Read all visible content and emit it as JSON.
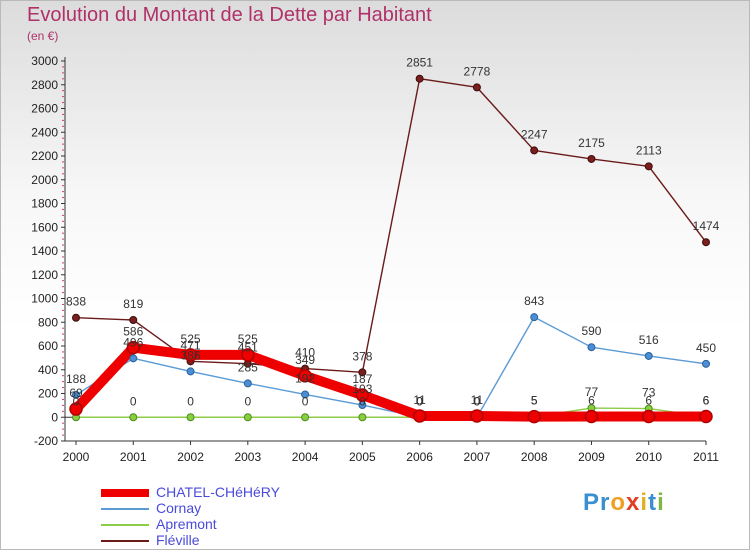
{
  "header": {
    "title": "Evolution du Montant de la Dette par Habitant",
    "subtitle": "(en €)"
  },
  "colors": {
    "CHATEL-CHéHéRY": "#ee0000",
    "Cornay": "#5b9bd5",
    "Apremont": "#8ccc46",
    "Fléville": "#6b1a1a"
  },
  "chart_data": {
    "type": "line",
    "title": "Evolution du Montant de la Dette par Habitant",
    "subtitle": "(en €)",
    "xlabel": "",
    "ylabel": "",
    "categories": [
      "2000",
      "2001",
      "2002",
      "2003",
      "2004",
      "2005",
      "2006",
      "2007",
      "2008",
      "2009",
      "2010",
      "2011"
    ],
    "yticks": [
      "-200",
      "0",
      "200",
      "400",
      "600",
      "800",
      "1000",
      "1200",
      "1400",
      "1600",
      "1800",
      "2000",
      "2200",
      "2400",
      "2600",
      "2800",
      "3000"
    ],
    "ylim": [
      -200,
      3000
    ],
    "grid": false,
    "legend": "bottom-left",
    "series": [
      {
        "name": "CHATEL-CHéHéRY",
        "values": [
          69,
          586,
          525,
          525,
          349,
          187,
          11,
          11,
          5,
          6,
          6,
          6
        ],
        "labels": [
          "69",
          "586",
          "525",
          "525",
          "349",
          "187",
          "11",
          "11",
          "5",
          "6",
          "6",
          "6"
        ]
      },
      {
        "name": "Cornay",
        "values": [
          188,
          496,
          386,
          285,
          192,
          103,
          0,
          0,
          843,
          590,
          516,
          450
        ],
        "labels": [
          "188",
          "496",
          "386",
          "285",
          "192",
          "103",
          "0",
          "0",
          "843",
          "590",
          "516",
          "450"
        ]
      },
      {
        "name": "Apremont",
        "values": [
          0,
          0,
          0,
          0,
          0,
          0,
          0,
          0,
          5,
          77,
          73,
          6
        ],
        "labels": [
          "0",
          "0",
          "0",
          "0",
          "0",
          "0",
          "0",
          "0",
          "5",
          "77",
          "73",
          "6"
        ]
      },
      {
        "name": "Fléville",
        "values": [
          838,
          819,
          471,
          451,
          410,
          378,
          2851,
          2778,
          2247,
          2175,
          2113,
          1474
        ],
        "labels": [
          "838",
          "819",
          "471",
          "451",
          "410",
          "378",
          "2851",
          "2778",
          "2247",
          "2175",
          "2113",
          "1474"
        ]
      }
    ]
  },
  "legend": {
    "items": [
      {
        "label": "CHATEL-CHéHéRY"
      },
      {
        "label": "Cornay"
      },
      {
        "label": "Apremont"
      },
      {
        "label": "Fléville"
      }
    ]
  },
  "logo": {
    "letters": [
      "P",
      "r",
      "o",
      "x",
      "i",
      "t",
      "i"
    ],
    "colors": [
      "#3a8fd0",
      "#3a8fd0",
      "#f0a020",
      "#e04020",
      "#e0b020",
      "#3a8fd0",
      "#7ab840"
    ]
  }
}
